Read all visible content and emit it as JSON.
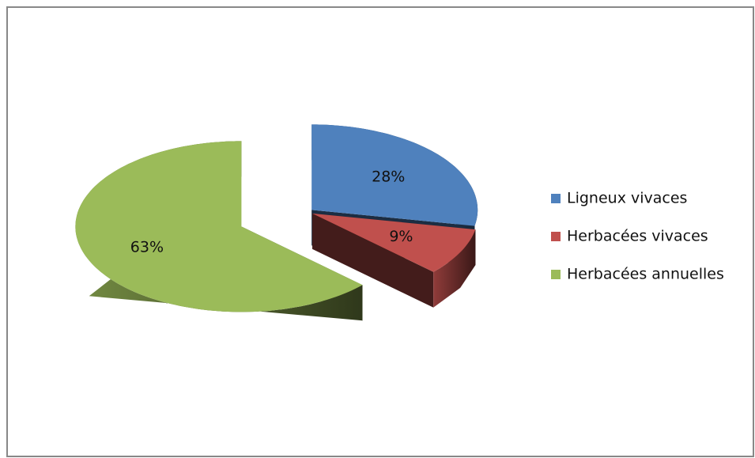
{
  "chart_data": {
    "type": "pie",
    "categories": [
      "Ligneux vivaces",
      "Herbacées vivaces",
      "Herbacées annuelles"
    ],
    "values": [
      28,
      9,
      63
    ],
    "value_labels": [
      "28%",
      "9%",
      "63%"
    ],
    "colors": [
      "#4f81bd",
      "#c0504d",
      "#9bbb59"
    ],
    "legend": "right"
  }
}
